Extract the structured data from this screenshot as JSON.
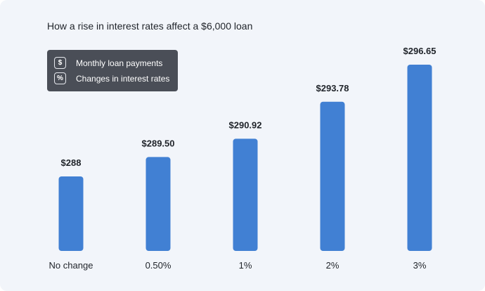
{
  "chart_data": {
    "type": "bar",
    "title": "How a rise in interest rates affect a $6,000 loan",
    "categories": [
      "No change",
      "0.50%",
      "1%",
      "2%",
      "3%"
    ],
    "values": [
      288,
      289.5,
      290.92,
      293.78,
      296.65
    ],
    "value_labels": [
      "$288",
      "$289.50",
      "$290.92",
      "$293.78",
      "$296.65"
    ],
    "xlabel": "",
    "ylabel": "",
    "grid": false,
    "legend_position": "top-left",
    "bar_color": "#4180d3",
    "legend": [
      {
        "icon": "$",
        "icon_name": "dollar-icon",
        "label": "Monthly loan payments"
      },
      {
        "icon": "%",
        "icon_name": "percent-icon",
        "label": "Changes in interest rates"
      }
    ]
  }
}
